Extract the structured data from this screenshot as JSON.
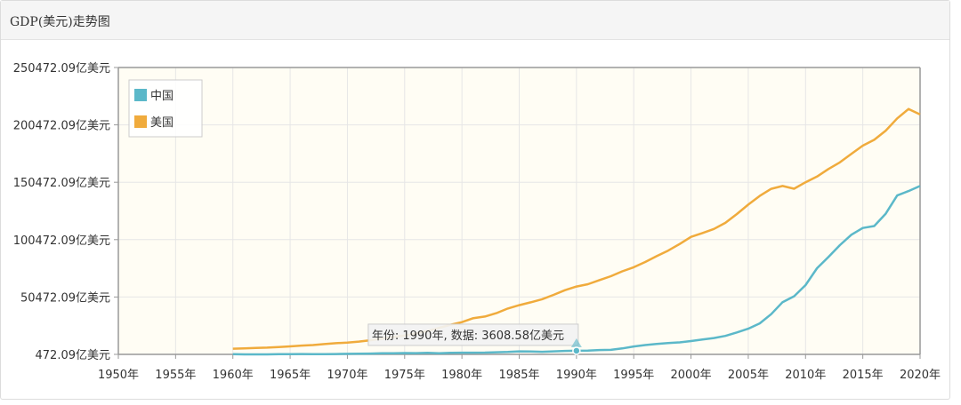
{
  "panel": {
    "title": "GDP(美元)走势图"
  },
  "colors": {
    "china": "#5bb8c9",
    "usa": "#f0ab3c",
    "plot_bg": "#fffdf4",
    "grid": "#e6e6e6",
    "axis": "#999999"
  },
  "chart_data": {
    "type": "line",
    "title": "GDP(美元)走势图",
    "unit": "亿美元",
    "xlim": [
      1950,
      2020
    ],
    "ylim": [
      472.09,
      250472.09
    ],
    "x_ticks": [
      "1950年",
      "1955年",
      "1960年",
      "1965年",
      "1970年",
      "1975年",
      "1980年",
      "1985年",
      "1990年",
      "1995年",
      "2000年",
      "2005年",
      "2010年",
      "2015年",
      "2020年"
    ],
    "x_tick_values": [
      1950,
      1955,
      1960,
      1965,
      1970,
      1975,
      1980,
      1985,
      1990,
      1995,
      2000,
      2005,
      2010,
      2015,
      2020
    ],
    "y_ticks": [
      "472.09亿美元",
      "50472.09亿美元",
      "100472.09亿美元",
      "150472.09亿美元",
      "200472.09亿美元",
      "250472.09亿美元"
    ],
    "y_tick_values": [
      472.09,
      50472.09,
      100472.09,
      150472.09,
      200472.09,
      250472.09
    ],
    "grid": true,
    "legend_position": "top-left",
    "series": [
      {
        "name": "中国",
        "color_key": "china",
        "x": [
          1960,
          1961,
          1962,
          1963,
          1964,
          1965,
          1966,
          1967,
          1968,
          1969,
          1970,
          1971,
          1972,
          1973,
          1974,
          1975,
          1976,
          1977,
          1978,
          1979,
          1980,
          1981,
          1982,
          1983,
          1984,
          1985,
          1986,
          1987,
          1988,
          1989,
          1990,
          1991,
          1992,
          1993,
          1994,
          1995,
          1996,
          1997,
          1998,
          1999,
          2000,
          2001,
          2002,
          2003,
          2004,
          2005,
          2006,
          2007,
          2008,
          2009,
          2010,
          2011,
          2012,
          2013,
          2014,
          2015,
          2016,
          2017,
          2018,
          2019,
          2020
        ],
        "values": [
          597,
          500,
          472,
          505,
          594,
          704,
          767,
          727,
          708,
          795,
          926,
          998,
          1138,
          1385,
          1441,
          1630,
          1539,
          1750,
          1495,
          1783,
          1911,
          1958,
          2052,
          2306,
          2599,
          3094,
          3008,
          2729,
          3123,
          3477,
          3609,
          3834,
          4269,
          4447,
          5643,
          7340,
          8637,
          9615,
          10290,
          10940,
          12113,
          13394,
          14705,
          16603,
          19553,
          22860,
          27521,
          35522,
          45982,
          51100,
          60872,
          75515,
          85322,
          95704,
          104757,
          110616,
          112333,
          123104,
          138948,
          142799,
          147227
        ]
      },
      {
        "name": "美国",
        "color_key": "usa",
        "x": [
          1960,
          1961,
          1962,
          1963,
          1964,
          1965,
          1966,
          1967,
          1968,
          1969,
          1970,
          1971,
          1972,
          1973,
          1974,
          1975,
          1976,
          1977,
          1978,
          1979,
          1980,
          1981,
          1982,
          1983,
          1984,
          1985,
          1986,
          1987,
          1988,
          1989,
          1990,
          1991,
          1992,
          1993,
          1994,
          1995,
          1996,
          1997,
          1998,
          1999,
          2000,
          2001,
          2002,
          2003,
          2004,
          2005,
          2006,
          2007,
          2008,
          2009,
          2010,
          2011,
          2012,
          2013,
          2014,
          2015,
          2016,
          2017,
          2018,
          2019,
          2020
        ],
        "values": [
          5433,
          5633,
          6051,
          6386,
          6858,
          7437,
          8150,
          8617,
          9425,
          10199,
          10734,
          11647,
          12797,
          14254,
          15452,
          16849,
          18731,
          20812,
          23516,
          26275,
          28573,
          32074,
          33452,
          36349,
          40373,
          43387,
          45797,
          48551,
          52365,
          56417,
          59631,
          61584,
          65202,
          68586,
          72875,
          76397,
          81002,
          86085,
          90891,
          96605,
          102848,
          106218,
          109775,
          115106,
          122749,
          130937,
          138559,
          144776,
          147186,
          144789,
          150490,
          155426,
          161970,
          167848,
          175217,
          182383,
          187451,
          195429,
          206119,
          214332,
          209532
        ]
      }
    ],
    "tooltip": {
      "text": "年份: 1990年, 数据: 3608.58亿美元",
      "x": 1990,
      "y": 3608.58,
      "series": "中国"
    }
  }
}
